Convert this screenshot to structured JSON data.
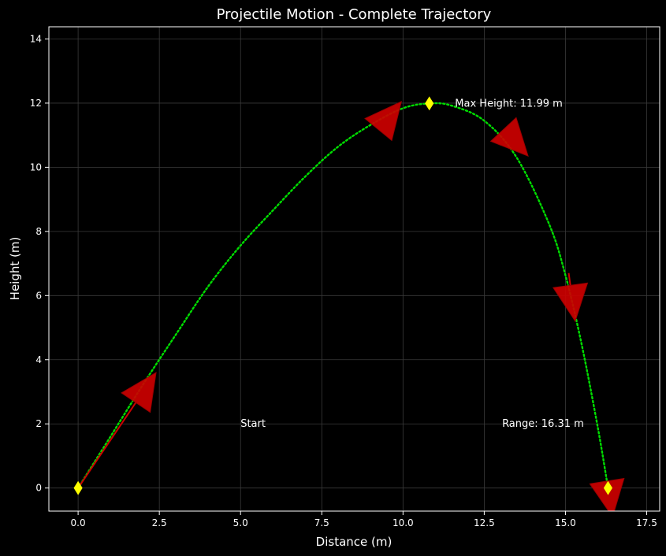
{
  "chart_data": {
    "type": "line",
    "title": "Projectile Motion - Complete Trajectory",
    "xlabel": "Distance (m)",
    "ylabel": "Height (m)",
    "xlim": [
      -0.9,
      17.9
    ],
    "ylim": [
      -0.72,
      14.38
    ],
    "xticks": [
      0.0,
      2.5,
      5.0,
      7.5,
      10.0,
      12.5,
      15.0,
      17.5
    ],
    "xtick_labels": [
      "0.0",
      "2.5",
      "5.0",
      "7.5",
      "10.0",
      "12.5",
      "15.0",
      "17.5"
    ],
    "yticks": [
      0,
      2,
      4,
      6,
      8,
      10,
      12,
      14
    ],
    "ytick_labels": [
      "0",
      "2",
      "4",
      "6",
      "8",
      "10",
      "12",
      "14"
    ],
    "grid": true,
    "series": [
      {
        "name": "",
        "style": "dotted",
        "color": "#00dd00",
        "x": [
          0.0,
          1.0,
          2.0,
          3.0,
          4.0,
          5.0,
          6.0,
          7.0,
          8.0,
          9.0,
          10.0,
          10.81,
          11.5,
          12.5,
          13.5,
          14.5,
          15.0,
          15.5,
          16.0,
          16.31
        ],
        "y": [
          0.0,
          1.61,
          3.23,
          4.77,
          6.28,
          7.56,
          8.66,
          9.72,
          10.64,
          11.32,
          11.84,
          11.99,
          11.92,
          11.45,
          10.3,
          8.22,
          6.63,
          4.47,
          1.86,
          0.0
        ]
      }
    ],
    "points": [
      {
        "x": 0.0,
        "y": 0.0,
        "marker": "diamond",
        "color": "#ffff00"
      },
      {
        "x": 10.81,
        "y": 11.99,
        "marker": "diamond",
        "color": "#ffff00"
      },
      {
        "x": 16.31,
        "y": 0.0,
        "marker": "diamond",
        "color": "#ffff00"
      }
    ],
    "velocity_arrows": [
      {
        "x": 0.0,
        "y": 0.0,
        "tip_x": 2.4,
        "tip_y": 3.6,
        "color": "#cc0000"
      },
      {
        "x": 9.3,
        "y": 11.25,
        "tip_x": 9.95,
        "tip_y": 12.05,
        "color": "#cc0000"
      },
      {
        "x": 13.3,
        "y": 10.95,
        "tip_x": 13.85,
        "tip_y": 10.35,
        "color": "#cc0000"
      },
      {
        "x": 15.1,
        "y": 6.7,
        "tip_x": 15.3,
        "tip_y": 5.2,
        "color": "#cc0000"
      },
      {
        "x": 16.31,
        "y": 0.0,
        "tip_x": 16.45,
        "tip_y": -0.9,
        "color": "#cc0000"
      }
    ],
    "annotations": [
      {
        "text": "Max Height: 11.99 m",
        "x": 11.6,
        "y": 11.99
      },
      {
        "text": "Start",
        "x": 5.0,
        "y": 2.0
      },
      {
        "text": "Range: 16.31 m",
        "x": 13.05,
        "y": 2.0
      }
    ],
    "colors": {
      "background": "#000000",
      "axes": "#ffffff",
      "grid": "#3a3a3a",
      "trajectory": "#00dd00",
      "marker": "#ffff00",
      "arrow": "#cc0000",
      "text": "#ffffff"
    }
  }
}
